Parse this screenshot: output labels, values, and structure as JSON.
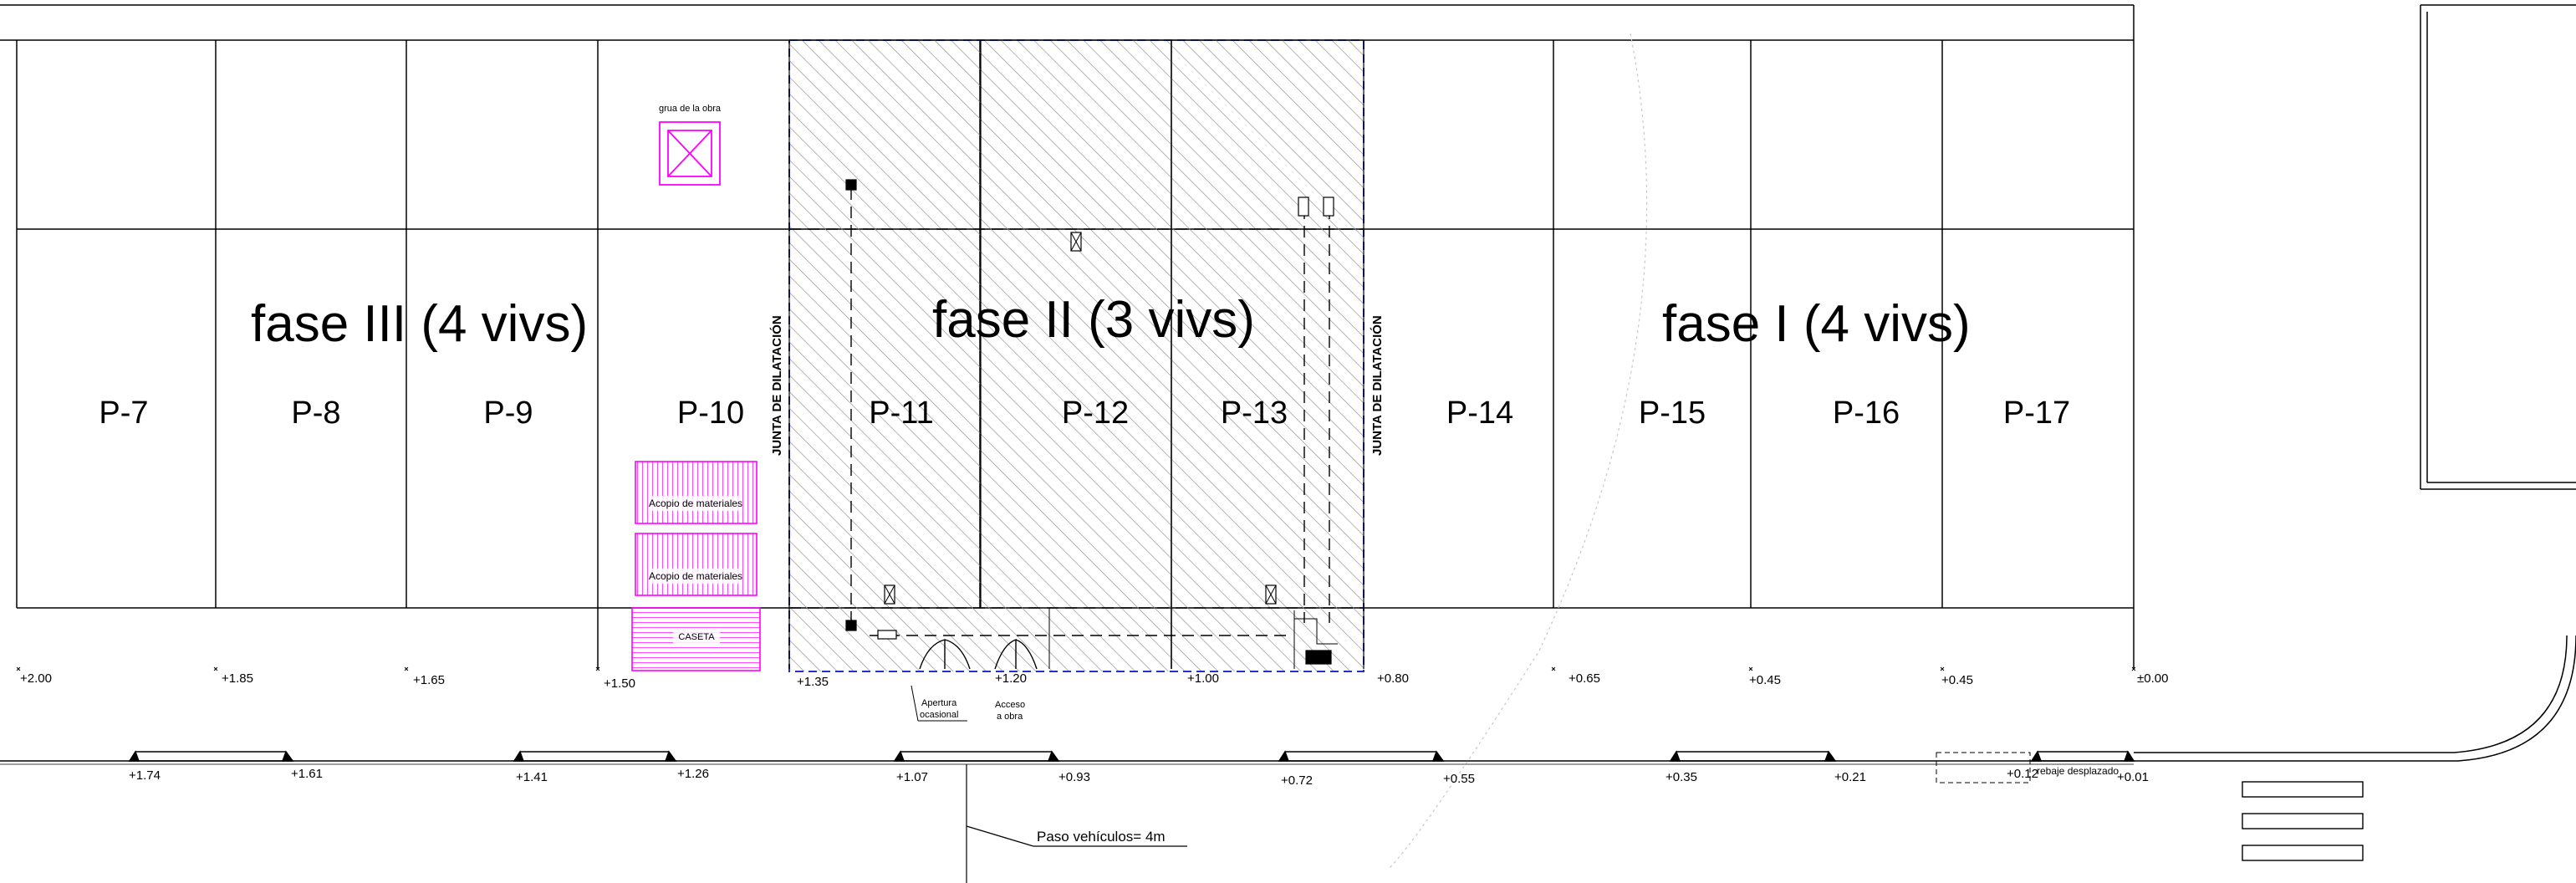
{
  "phases": [
    {
      "id": "fase-iii",
      "label": "fase III (4 vivs)"
    },
    {
      "id": "fase-ii",
      "label": "fase II (3 vivs)"
    },
    {
      "id": "fase-i",
      "label": "fase I (4 vivs)"
    }
  ],
  "plots": [
    "P-7",
    "P-8",
    "P-9",
    "P-10",
    "P-11",
    "P-12",
    "P-13",
    "P-14",
    "P-15",
    "P-16",
    "P-17"
  ],
  "junta_label": "JUNTA DE DILATACIÓN",
  "crane_label": "grua de la obra",
  "storage_label": "Acopio de materiales",
  "hut_label": "CASETA",
  "gates": {
    "occasional": [
      "Apertura",
      "ocasional"
    ],
    "access": [
      "Acceso",
      "a obra"
    ]
  },
  "upper_levels": [
    "+2.00",
    "+1.85",
    "+1.65",
    "+1.50",
    "+1.35",
    "+1.20",
    "+1.00",
    "+0.80",
    "+0.65",
    "+0.45",
    "+0.45",
    "±0.00"
  ],
  "lower_levels": [
    "+1.74",
    "+1.61",
    "+1.41",
    "+1.26",
    "+1.07",
    "+0.93",
    "+0.72",
    "+0.55",
    "+0.35",
    "+0.21",
    "+0.12",
    "+0.01"
  ],
  "curb_note": "rebaje desplazado",
  "vehicle_pass": "Paso vehículos= 4m",
  "colors": {
    "line": "#000000",
    "phase_border": "#2233cc",
    "magenta": "#ff00ff",
    "hatch": "#9a9a9a"
  }
}
